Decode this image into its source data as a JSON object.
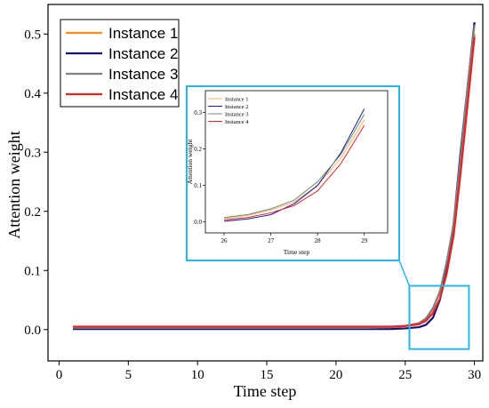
{
  "chart_data": {
    "type": "line",
    "xlabel": "Time step",
    "ylabel": "Attention weight",
    "xlim": [
      -0.8,
      30.6
    ],
    "ylim": [
      -0.053,
      0.55
    ],
    "xticks": [
      0,
      5,
      10,
      15,
      20,
      25,
      30
    ],
    "yticks": [
      0.0,
      0.1,
      0.2,
      0.3,
      0.4,
      0.5
    ],
    "grid": false,
    "legend_position": "top-left",
    "series": [
      {
        "name": "Instance 1",
        "color": "#ff8c1a",
        "x": [
          1,
          5,
          10,
          15,
          20,
          22,
          24,
          25,
          26,
          26.5,
          27,
          27.5,
          28,
          28.5,
          29,
          29.5,
          30
        ],
        "y": [
          0.004,
          0.004,
          0.004,
          0.004,
          0.004,
          0.004,
          0.005,
          0.006,
          0.01,
          0.018,
          0.035,
          0.065,
          0.11,
          0.17,
          0.28,
          0.4,
          0.5
        ]
      },
      {
        "name": "Instance 2",
        "color": "#141478",
        "x": [
          1,
          5,
          10,
          15,
          20,
          22,
          24,
          25,
          26,
          26.5,
          27,
          27.5,
          28,
          28.5,
          29,
          29.5,
          30
        ],
        "y": [
          0.001,
          0.001,
          0.001,
          0.001,
          0.001,
          0.001,
          0.001,
          0.002,
          0.004,
          0.008,
          0.02,
          0.05,
          0.1,
          0.18,
          0.3,
          0.41,
          0.52
        ]
      },
      {
        "name": "Instance 3",
        "color": "#808080",
        "x": [
          1,
          5,
          10,
          15,
          20,
          22,
          24,
          25,
          26,
          26.5,
          27,
          27.5,
          28,
          28.5,
          29,
          29.5,
          30
        ],
        "y": [
          0.003,
          0.003,
          0.003,
          0.003,
          0.003,
          0.003,
          0.004,
          0.006,
          0.011,
          0.019,
          0.036,
          0.063,
          0.115,
          0.18,
          0.29,
          0.41,
          0.515
        ]
      },
      {
        "name": "Instance 4",
        "color": "#e8231f",
        "x": [
          1,
          5,
          10,
          15,
          20,
          22,
          24,
          25,
          26,
          26.5,
          27,
          27.5,
          28,
          28.5,
          29,
          29.5,
          30
        ],
        "y": [
          0.005,
          0.005,
          0.005,
          0.005,
          0.005,
          0.005,
          0.005,
          0.006,
          0.009,
          0.015,
          0.028,
          0.052,
          0.095,
          0.16,
          0.265,
          0.38,
          0.495
        ]
      }
    ],
    "zoom_box": {
      "x": [
        25.3,
        29.6
      ],
      "y": [
        -0.033,
        0.074
      ]
    },
    "inset": {
      "xlabel": "Time step",
      "ylabel": "Attention weight",
      "xlim": [
        25.6,
        29.5
      ],
      "ylim": [
        -0.03,
        0.36
      ],
      "xticks": [
        26,
        27,
        28,
        29
      ],
      "yticks": [
        0.0,
        0.1,
        0.2,
        0.3
      ],
      "series": [
        {
          "name": "Instance 1",
          "color": "#f7b26b",
          "x": [
            26,
            26.5,
            27,
            27.5,
            28,
            28.5,
            29
          ],
          "y": [
            0.01,
            0.018,
            0.033,
            0.055,
            0.1,
            0.175,
            0.28
          ]
        },
        {
          "name": "Instance 2",
          "color": "#1c1ca0",
          "x": [
            26,
            26.5,
            27,
            27.5,
            28,
            28.5,
            29
          ],
          "y": [
            0.002,
            0.008,
            0.02,
            0.05,
            0.1,
            0.19,
            0.31
          ]
        },
        {
          "name": "Instance 3",
          "color": "#6f8f6f",
          "x": [
            26,
            26.5,
            27,
            27.5,
            28,
            28.5,
            29
          ],
          "y": [
            0.012,
            0.02,
            0.036,
            0.06,
            0.11,
            0.185,
            0.295
          ]
        },
        {
          "name": "Instance 4",
          "color": "#e8231f",
          "x": [
            26,
            26.5,
            27,
            27.5,
            28,
            28.5,
            29
          ],
          "y": [
            0.006,
            0.012,
            0.025,
            0.045,
            0.085,
            0.16,
            0.265
          ]
        }
      ]
    }
  },
  "colors": {
    "highlight": "#29b6e8",
    "axis": "#000000"
  }
}
